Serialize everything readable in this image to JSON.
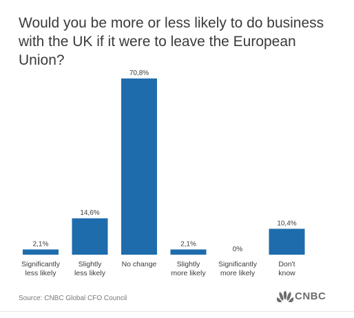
{
  "title": "Would you be more or less likely to do business with the UK if it were to leave the European Union?",
  "source": "Source: CNBC Global CFO Council",
  "logo": {
    "text": "CNBC",
    "icon": "peacock-icon"
  },
  "colors": {
    "bar": "#1f6cad",
    "text": "#3a3a3a",
    "source": "#777777"
  },
  "chart_data": {
    "type": "bar",
    "title": "Would you be more or less likely to do business with the UK if it were to leave the European Union?",
    "categories": [
      [
        "Significantly",
        "less likely"
      ],
      [
        "Slightly",
        "less likely"
      ],
      [
        "No change"
      ],
      [
        "Slightly",
        "more likely"
      ],
      [
        "Significantly",
        "more likely"
      ],
      [
        "Don't",
        "know"
      ]
    ],
    "values": [
      2.1,
      14.6,
      70.8,
      2.1,
      0,
      10.4
    ],
    "value_labels": [
      "2,1%",
      "14,6%",
      "70,8%",
      "2,1%",
      "0%",
      "10,4%"
    ],
    "xlabel": "",
    "ylabel": "",
    "grid": false,
    "legend": "none"
  }
}
